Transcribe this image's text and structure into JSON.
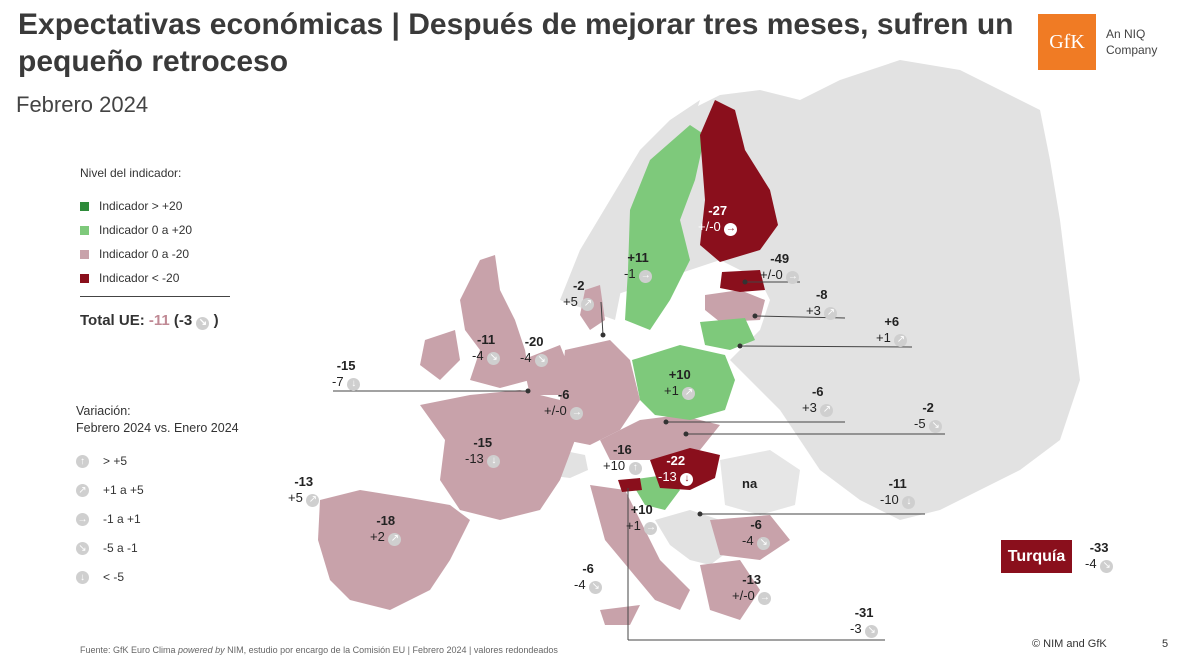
{
  "title": "Expectativas económicas | Después de mejorar tres meses, sufren un pequeño retroceso",
  "subtitle": "Febrero 2024",
  "logo": {
    "mark": "GfK",
    "line1": "An NIQ",
    "line2": "Company",
    "color": "#f07b24"
  },
  "legend": {
    "heading": "Nivel del indicador:",
    "items": [
      {
        "label": "Indicador > +20",
        "color": "#2e8b3a"
      },
      {
        "label": "Indicador 0 a +20",
        "color": "#7ec97b"
      },
      {
        "label": "Indicador 0 a -20",
        "color": "#c8a2aa"
      },
      {
        "label": "Indicador < -20",
        "color": "#8a0f1c"
      }
    ]
  },
  "total": {
    "label": "Total UE:",
    "value": "-11",
    "change": "(-3",
    "close": ")"
  },
  "variation": {
    "line1": "Variación:",
    "line2": "Febrero 2024 vs. Enero 2024",
    "items": [
      {
        "label": "> +5",
        "arrow": "up-arrow-icon",
        "glyph": "↑"
      },
      {
        "label": "+1 a +5",
        "arrow": "up-right-arrow-icon",
        "glyph": "↗"
      },
      {
        "label": "-1 a +1",
        "arrow": "right-arrow-icon",
        "glyph": "→"
      },
      {
        "label": "-5 a -1",
        "arrow": "down-right-arrow-icon",
        "glyph": "↘"
      },
      {
        "label": "< -5",
        "arrow": "down-arrow-icon",
        "glyph": "↓"
      }
    ]
  },
  "countries": {
    "finland": {
      "value": "-27",
      "change": "+/-0"
    },
    "sweden": {
      "value": "+11",
      "change": "-1"
    },
    "estonia": {
      "value": "-49",
      "change": "+/-0"
    },
    "latvia": {
      "value": "-8",
      "change": "+3"
    },
    "lithuania": {
      "value": "+6",
      "change": "+1"
    },
    "denmark": {
      "value": "-2",
      "change": "+5"
    },
    "ireland": {
      "value": "-11",
      "change": "-4"
    },
    "netherlands": {
      "value": "-20",
      "change": "-4"
    },
    "belgium": {
      "value": "-15",
      "change": "-7"
    },
    "germany": {
      "value": "-6",
      "change": "+/-0"
    },
    "poland": {
      "value": "+10",
      "change": "+1"
    },
    "czechia": {
      "value": "-6",
      "change": "+3"
    },
    "slovakia": {
      "value": "-2",
      "change": "-5"
    },
    "france": {
      "value": "-15",
      "change": "-13"
    },
    "austria": {
      "value": "-16",
      "change": "+10"
    },
    "hungary": {
      "value": "-22",
      "change": "-13"
    },
    "romania": {
      "value": "na"
    },
    "croatia": {
      "value": "+10",
      "change": "+1"
    },
    "slovenia_line": {
      "value": "-11",
      "change": "-10"
    },
    "portugal": {
      "value": "-13",
      "change": "+5"
    },
    "spain": {
      "value": "-18",
      "change": "+2"
    },
    "bulgaria": {
      "value": "-6",
      "change": "-4"
    },
    "italy": {
      "value": "-6",
      "change": "-4"
    },
    "greece": {
      "value": "-13",
      "change": "+/-0"
    },
    "cyprus": {
      "value": "-31",
      "change": "-3"
    },
    "turkey": {
      "label": "Turquía",
      "value": "-33",
      "change": "-4"
    }
  },
  "colors": {
    "dark_green": "#2e8b3a",
    "light_green": "#7ec97b",
    "pink": "#c8a2aa",
    "dark_red": "#8a0f1c",
    "grey": "#e0e0e0"
  },
  "footer": {
    "source_prefix": "Fuente: GfK Euro Clima ",
    "source_italic": "powered by",
    "source_suffix": " NIM, estudio por encargo de la Comisión EU | Febrero 2024 | valores redondeados",
    "copyright": "© NIM and GfK",
    "page": "5"
  }
}
